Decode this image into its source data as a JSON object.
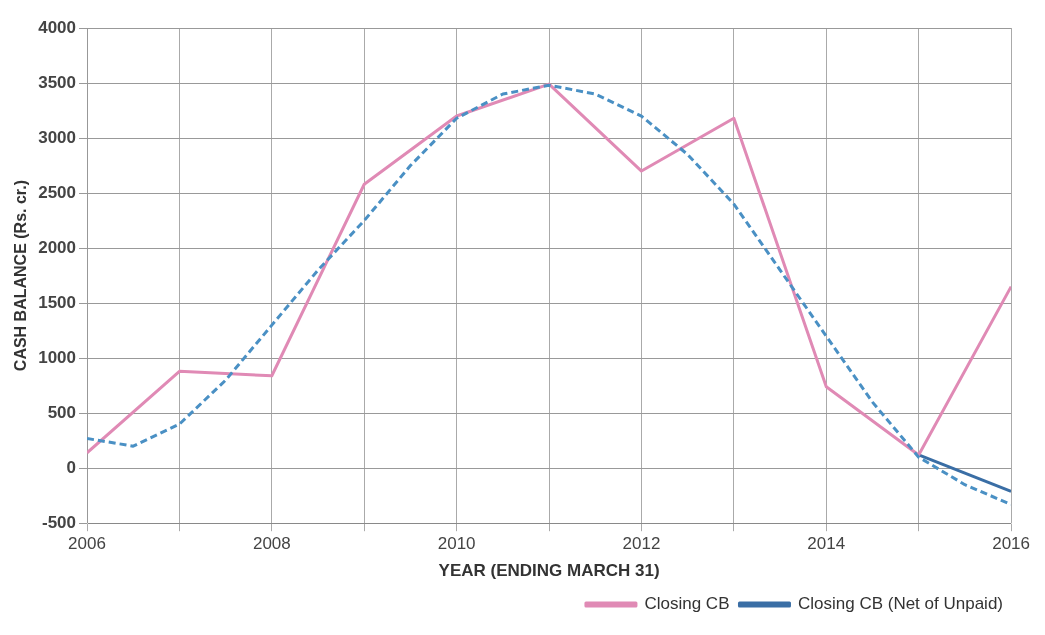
{
  "chart_data": {
    "type": "line",
    "xlabel": "YEAR (ENDING MARCH 31)",
    "ylabel": "CASH BALANCE (Rs. cr.)",
    "x": [
      2006,
      2007,
      2008,
      2009,
      2010,
      2011,
      2012,
      2013,
      2014,
      2015,
      2016
    ],
    "series": [
      {
        "name": "Closing CB (Net of Unpaid)",
        "color": "#3a6ea5",
        "values": [
          null,
          null,
          null,
          null,
          null,
          null,
          null,
          null,
          null,
          120,
          -210
        ]
      },
      {
        "name": "Closing CB",
        "color": "#e08ab5",
        "values": [
          140,
          880,
          840,
          2580,
          3200,
          3490,
          2700,
          3180,
          740,
          120,
          1650
        ]
      },
      {
        "type": "line",
        "color": "#4a90c4",
        "line_style": "dashed",
        "x": [
          2006,
          2006.5,
          2007,
          2007.5,
          2008,
          2008.5,
          2009,
          2009.5,
          2010,
          2010.5,
          2011,
          2011.5,
          2012,
          2012.5,
          2013,
          2013.5,
          2014,
          2014.5,
          2015,
          2015.5,
          2016
        ],
        "values": [
          270,
          200,
          400,
          800,
          1300,
          1800,
          2250,
          2750,
          3180,
          3400,
          3480,
          3400,
          3200,
          2850,
          2400,
          1800,
          1200,
          600,
          100,
          -150,
          -330
        ]
      }
    ],
    "xlim": [
      2006,
      2016
    ],
    "xticks": [
      2006,
      {
        "value": 2007,
        "label": null
      },
      2008,
      {
        "value": 2009,
        "label": null
      },
      2010,
      {
        "value": 2011,
        "label": null
      },
      2012,
      {
        "value": 2013,
        "label": null
      },
      2014,
      {
        "value": 2015,
        "label": null
      },
      2016
    ],
    "ylim": [
      -500,
      4000
    ],
    "yticks": [
      -500,
      0,
      500,
      1000,
      1500,
      2000,
      2500,
      3000,
      3500,
      4000
    ],
    "grid": true,
    "legend": "bottom right",
    "marker": "none",
    "line_style": "solid"
  }
}
